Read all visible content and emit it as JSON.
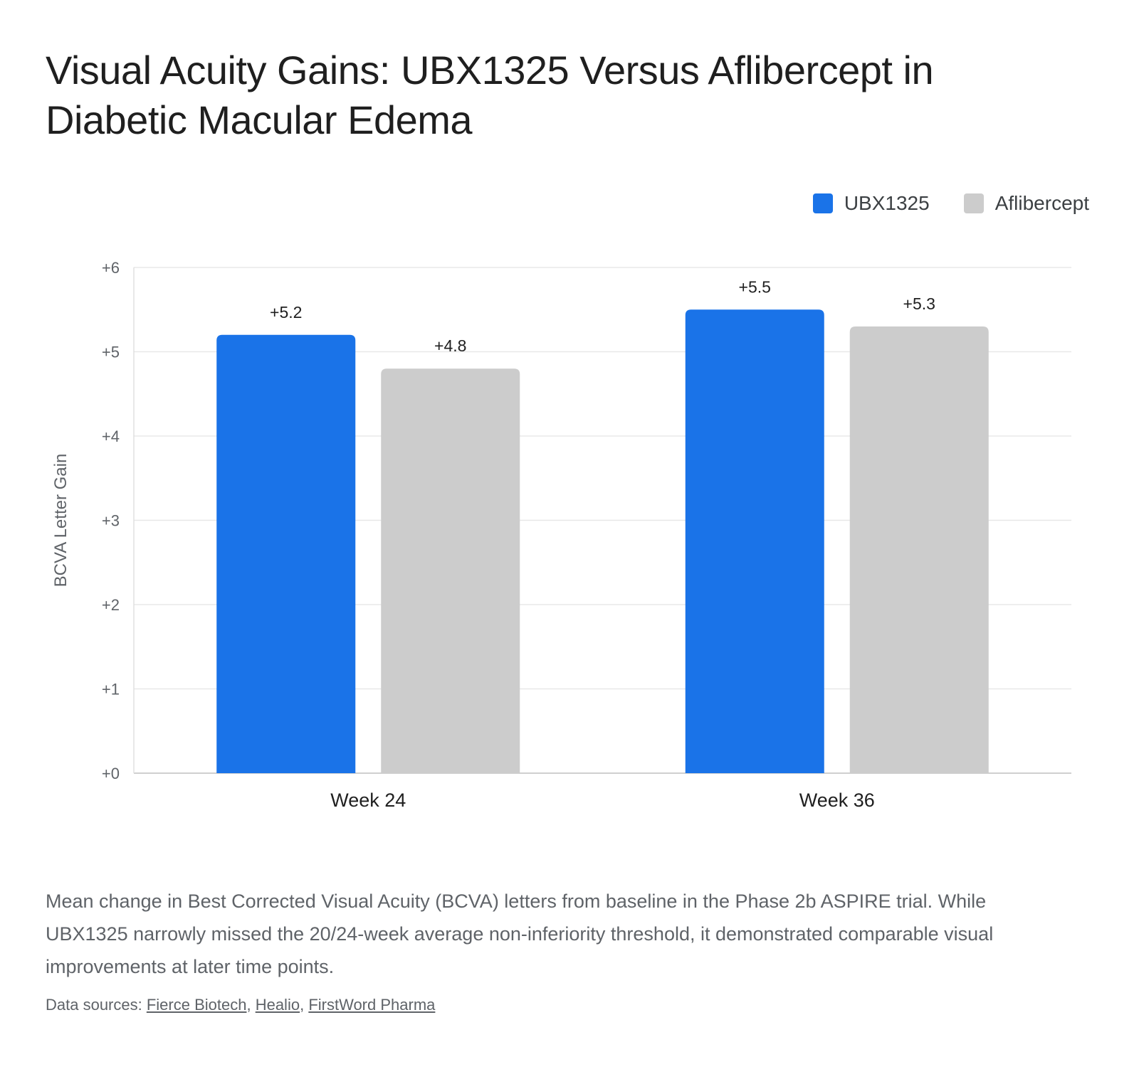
{
  "title": "Visual Acuity Gains: UBX1325 Versus Aflibercept in Diabetic Macular Edema",
  "legend": [
    {
      "label": "UBX1325",
      "color": "#1a73e8"
    },
    {
      "label": "Aflibercept",
      "color": "#cccccc"
    }
  ],
  "chart_data": {
    "type": "bar",
    "title": "Visual Acuity Gains: UBX1325 Versus Aflibercept in Diabetic Macular Edema",
    "categories": [
      "Week 24",
      "Week 36"
    ],
    "series": [
      {
        "name": "UBX1325",
        "values": [
          5.2,
          5.5
        ],
        "labels": [
          "+5.2",
          "+5.5"
        ],
        "color": "#1a73e8"
      },
      {
        "name": "Aflibercept",
        "values": [
          4.8,
          5.3
        ],
        "labels": [
          "+4.8",
          "+5.3"
        ],
        "color": "#cccccc"
      }
    ],
    "xlabel": "",
    "ylabel": "BCVA Letter Gain",
    "ylim": [
      0,
      6
    ],
    "yticks": [
      0,
      1,
      2,
      3,
      4,
      5,
      6
    ],
    "ytick_labels": [
      "+0",
      "+1",
      "+2",
      "+3",
      "+4",
      "+5",
      "+6"
    ],
    "grid": true,
    "legend_position": "top-right"
  },
  "caption": "Mean change in Best Corrected Visual Acuity (BCVA) letters from baseline in the Phase 2b ASPIRE trial. While UBX1325 narrowly missed the 20/24-week average non-inferiority threshold, it demonstrated comparable visual improvements at later time points.",
  "sources": {
    "prefix": "Data sources: ",
    "links": [
      "Fierce Biotech",
      "Healio",
      "FirstWord Pharma"
    ],
    "separator": ", "
  }
}
